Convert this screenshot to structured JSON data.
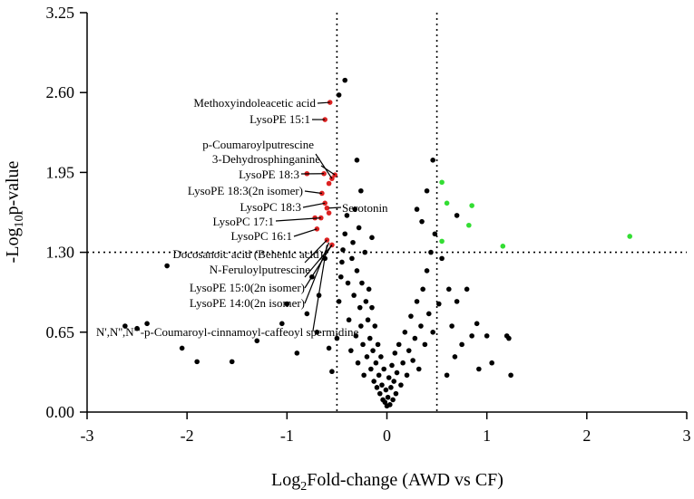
{
  "chart_data": {
    "type": "scatter",
    "xlabel_main": "Log",
    "xlabel_sub": "2",
    "xlabel_rest": "Fold-change (AWD vs CF)",
    "ylabel_main": "-Log",
    "ylabel_sub": "10",
    "ylabel_rest": "p-value",
    "xlim": [
      -3,
      3
    ],
    "ylim": [
      0,
      3.25
    ],
    "xticks": [
      -3,
      -2,
      -1,
      0,
      1,
      2,
      3
    ],
    "yticks": [
      0.0,
      0.65,
      1.3,
      1.95,
      2.6,
      3.25
    ],
    "xtick_labels": [
      "-3",
      "-2",
      "-1",
      "0",
      "1",
      "2",
      "3"
    ],
    "ytick_labels": [
      "0.00",
      "0.65",
      "1.30",
      "1.95",
      "2.60",
      "3.25"
    ],
    "thresholds": {
      "x": [
        -0.5,
        0.5
      ],
      "y": 1.3
    },
    "colors": {
      "up": "#33dd33",
      "down": "#dd2222",
      "ns": "#000000"
    },
    "series": [
      {
        "name": "down",
        "points": [
          [
            -0.57,
            2.52
          ],
          [
            -0.62,
            2.38
          ],
          [
            -0.63,
            1.94
          ],
          [
            -0.65,
            1.78
          ],
          [
            -0.62,
            1.7
          ],
          [
            -0.6,
            1.66
          ],
          [
            -0.58,
            1.62
          ],
          [
            -0.66,
            1.58
          ],
          [
            -0.7,
            1.49
          ],
          [
            -0.6,
            1.4
          ],
          [
            -0.55,
            1.36
          ],
          [
            -0.52,
            1.93
          ],
          [
            -0.55,
            1.9
          ],
          [
            -0.58,
            1.86
          ],
          [
            -0.8,
            1.94
          ],
          [
            -0.72,
            1.58
          ]
        ]
      },
      {
        "name": "up",
        "points": [
          [
            0.55,
            1.87
          ],
          [
            0.6,
            1.7
          ],
          [
            0.55,
            1.39
          ],
          [
            0.85,
            1.68
          ],
          [
            0.82,
            1.52
          ],
          [
            1.16,
            1.35
          ],
          [
            2.43,
            1.43
          ]
        ]
      },
      {
        "name": "ns",
        "points": [
          [
            -0.48,
            2.58
          ],
          [
            -0.42,
            2.7
          ],
          [
            -0.3,
            2.05
          ],
          [
            -0.15,
            1.42
          ],
          [
            -0.26,
            1.8
          ],
          [
            -2.62,
            0.7
          ],
          [
            -2.5,
            0.68
          ],
          [
            -2.4,
            0.72
          ],
          [
            -2.2,
            1.19
          ],
          [
            -2.05,
            0.52
          ],
          [
            -1.9,
            0.41
          ],
          [
            -1.55,
            0.41
          ],
          [
            -1.3,
            0.58
          ],
          [
            -1.05,
            0.72
          ],
          [
            -0.9,
            0.48
          ],
          [
            -0.8,
            0.8
          ],
          [
            -0.75,
            1.1
          ],
          [
            -0.7,
            0.65
          ],
          [
            -0.68,
            0.95
          ],
          [
            -1.0,
            0.88
          ],
          [
            -0.62,
            1.25
          ],
          [
            -0.58,
            0.52
          ],
          [
            -0.55,
            0.33
          ],
          [
            -0.5,
            0.6
          ],
          [
            -0.48,
            0.9
          ],
          [
            -0.46,
            1.1
          ],
          [
            -0.45,
            1.22
          ],
          [
            -0.44,
            1.32
          ],
          [
            -0.42,
            1.45
          ],
          [
            -0.4,
            1.6
          ],
          [
            -0.39,
            1.05
          ],
          [
            -0.38,
            0.75
          ],
          [
            -0.36,
            0.5
          ],
          [
            -0.35,
            1.25
          ],
          [
            -0.34,
            1.38
          ],
          [
            -0.33,
            0.95
          ],
          [
            -0.32,
            1.65
          ],
          [
            -0.31,
            0.62
          ],
          [
            -0.3,
            1.15
          ],
          [
            -0.29,
            0.4
          ],
          [
            -0.28,
            1.5
          ],
          [
            -0.27,
            0.85
          ],
          [
            -0.26,
            0.7
          ],
          [
            -0.25,
            1.05
          ],
          [
            -0.24,
            0.55
          ],
          [
            -0.23,
            0.3
          ],
          [
            -0.22,
            1.3
          ],
          [
            -0.21,
            0.9
          ],
          [
            -0.2,
            0.45
          ],
          [
            -0.19,
            0.75
          ],
          [
            -0.18,
            1.0
          ],
          [
            -0.17,
            0.6
          ],
          [
            -0.16,
            0.35
          ],
          [
            -0.15,
            0.85
          ],
          [
            -0.14,
            0.5
          ],
          [
            -0.13,
            0.25
          ],
          [
            -0.12,
            0.7
          ],
          [
            -0.11,
            0.4
          ],
          [
            -0.1,
            0.2
          ],
          [
            -0.09,
            0.55
          ],
          [
            -0.08,
            0.3
          ],
          [
            -0.07,
            0.15
          ],
          [
            -0.06,
            0.45
          ],
          [
            -0.05,
            0.22
          ],
          [
            -0.04,
            0.1
          ],
          [
            -0.03,
            0.35
          ],
          [
            -0.02,
            0.08
          ],
          [
            -0.01,
            0.18
          ],
          [
            0.0,
            0.05
          ],
          [
            0.01,
            0.12
          ],
          [
            0.02,
            0.28
          ],
          [
            0.03,
            0.06
          ],
          [
            0.04,
            0.2
          ],
          [
            0.05,
            0.38
          ],
          [
            0.06,
            0.1
          ],
          [
            0.07,
            0.25
          ],
          [
            0.08,
            0.48
          ],
          [
            0.09,
            0.15
          ],
          [
            0.1,
            0.32
          ],
          [
            0.12,
            0.55
          ],
          [
            0.14,
            0.22
          ],
          [
            0.16,
            0.4
          ],
          [
            0.18,
            0.65
          ],
          [
            0.2,
            0.3
          ],
          [
            0.22,
            0.5
          ],
          [
            0.24,
            0.78
          ],
          [
            0.26,
            0.42
          ],
          [
            0.28,
            0.6
          ],
          [
            0.3,
            0.9
          ],
          [
            0.32,
            0.35
          ],
          [
            0.34,
            0.7
          ],
          [
            0.36,
            1.0
          ],
          [
            0.38,
            0.55
          ],
          [
            0.4,
            1.15
          ],
          [
            0.42,
            0.8
          ],
          [
            0.44,
            1.3
          ],
          [
            0.46,
            0.65
          ],
          [
            0.48,
            1.45
          ],
          [
            0.3,
            1.65
          ],
          [
            0.4,
            1.8
          ],
          [
            0.35,
            1.55
          ],
          [
            0.46,
            2.05
          ],
          [
            0.62,
            1.0
          ],
          [
            0.65,
            0.7
          ],
          [
            0.7,
            0.9
          ],
          [
            0.75,
            0.55
          ],
          [
            0.8,
            1.0
          ],
          [
            0.85,
            0.62
          ],
          [
            0.9,
            0.72
          ],
          [
            0.92,
            0.35
          ],
          [
            1.0,
            0.62
          ],
          [
            1.05,
            0.4
          ],
          [
            1.2,
            0.62
          ],
          [
            1.22,
            0.6
          ],
          [
            1.24,
            0.3
          ],
          [
            0.55,
            1.25
          ],
          [
            0.6,
            0.3
          ],
          [
            0.68,
            0.45
          ],
          [
            0.52,
            0.88
          ],
          [
            0.7,
            1.6
          ]
        ]
      }
    ],
    "annotations": [
      {
        "text": "Methoxyindoleacetic acid",
        "point": [
          -0.57,
          2.52
        ]
      },
      {
        "text": "LysoPE 15:1",
        "point": [
          -0.62,
          2.38
        ]
      },
      {
        "text": "p-Coumaroylputrescine",
        "point": [
          -0.55,
          1.9
        ]
      },
      {
        "text": "3-Dehydrosphinganine",
        "point": [
          -0.52,
          1.93
        ]
      },
      {
        "text": "LysoPE 18:3",
        "point": [
          -0.63,
          1.94
        ]
      },
      {
        "text": "LysoPE 18:3(2n isomer)",
        "point": [
          -0.65,
          1.78
        ]
      },
      {
        "text": "LysoPC 18:3",
        "point": [
          -0.62,
          1.7
        ]
      },
      {
        "text": "Serotonin",
        "point": [
          -0.58,
          1.66
        ]
      },
      {
        "text": "LysoPC 17:1",
        "point": [
          -0.66,
          1.58
        ]
      },
      {
        "text": "LysoPC 16:1",
        "point": [
          -0.7,
          1.49
        ]
      },
      {
        "text": "Docosanoic acid (Behenic acid)",
        "point": [
          -0.6,
          1.4
        ]
      },
      {
        "text": "N-Feruloylputrescine",
        "point": [
          -0.55,
          1.36
        ]
      },
      {
        "text": "LysoPE 15:0(2n isomer)",
        "point": [
          -0.55,
          1.36
        ]
      },
      {
        "text": "LysoPE 14:0(2n isomer)",
        "point": [
          -0.58,
          1.38
        ]
      },
      {
        "text": "N',N'',N'''-p-Coumaroyl-cinnamoyl-caffeoyl spermidine",
        "point": [
          -0.6,
          1.36
        ]
      }
    ],
    "grid": false,
    "legend": "none"
  }
}
